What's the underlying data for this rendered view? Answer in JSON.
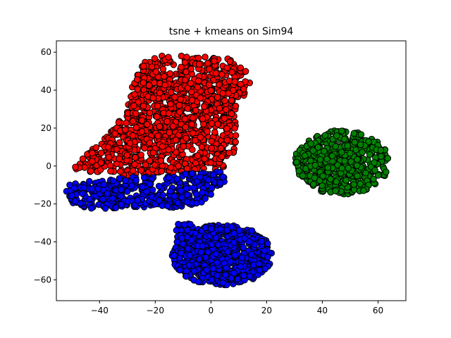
{
  "chart_data": {
    "type": "scatter",
    "title": "tsne + kmeans on Sim94",
    "xlabel": "",
    "ylabel": "",
    "xlim": [
      -55.5,
      70
    ],
    "ylim": [
      -71,
      66
    ],
    "xticks": [
      -40,
      -20,
      0,
      20,
      40,
      60
    ],
    "yticks": [
      -60,
      -40,
      -20,
      0,
      20,
      40,
      60
    ],
    "xtick_labels": [
      "−40",
      "−20",
      "0",
      "20",
      "40",
      "60"
    ],
    "ytick_labels": [
      "−60",
      "−40",
      "−20",
      "0",
      "20",
      "40",
      "60"
    ],
    "grid": false,
    "legend": "none",
    "marker_edge_color": "#000000",
    "clusters": [
      {
        "color": "#ff0000",
        "regions": [
          {
            "shape": "polygon",
            "vertices": [
              [
                -50,
                -3
              ],
              [
                -40,
                -3
              ],
              [
                -30,
                -5
              ],
              [
                -20,
                -4
              ],
              [
                -10,
                -3
              ],
              [
                0,
                -2
              ],
              [
                6,
                -1
              ],
              [
                6,
                5
              ],
              [
                9,
                8
              ],
              [
                9,
                35
              ],
              [
                14,
                38
              ],
              [
                14,
                45
              ],
              [
                12,
                52
              ],
              [
                8,
                57
              ],
              [
                0,
                57
              ],
              [
                -8,
                59
              ],
              [
                -18,
                58
              ],
              [
                -24,
                55
              ],
              [
                -28,
                44
              ],
              [
                -30,
                30
              ],
              [
                -36,
                18
              ],
              [
                -42,
                10
              ],
              [
                -46,
                5
              ]
            ],
            "count": 1200
          }
        ]
      },
      {
        "color": "#0000ff",
        "regions": [
          {
            "shape": "polygon",
            "vertices": [
              [
                -52,
                -10
              ],
              [
                -40,
                -7
              ],
              [
                -30,
                -6
              ],
              [
                -20,
                -5
              ],
              [
                -10,
                -4
              ],
              [
                0,
                -3
              ],
              [
                5,
                -3
              ],
              [
                5,
                -9
              ],
              [
                0,
                -15
              ],
              [
                -4,
                -20
              ],
              [
                -12,
                -22
              ],
              [
                -22,
                -22
              ],
              [
                -32,
                -22
              ],
              [
                -42,
                -23
              ],
              [
                -50,
                -20
              ],
              [
                -52,
                -16
              ]
            ],
            "count": 420
          },
          {
            "shape": "ellipse",
            "center": [
              4,
              -47
            ],
            "radii": [
              18,
              16
            ],
            "count": 650
          },
          {
            "shape": "polygon",
            "vertices": [
              [
                -14,
                -42
              ],
              [
                -12,
                -30
              ],
              [
                -8,
                -28
              ],
              [
                -6,
                -34
              ],
              [
                -10,
                -44
              ]
            ],
            "count": 20
          }
        ]
      },
      {
        "color": "#008000",
        "regions": [
          {
            "shape": "ellipse",
            "center": [
              47,
              2
            ],
            "radii": [
              17,
              17
            ],
            "count": 520
          }
        ]
      }
    ]
  }
}
